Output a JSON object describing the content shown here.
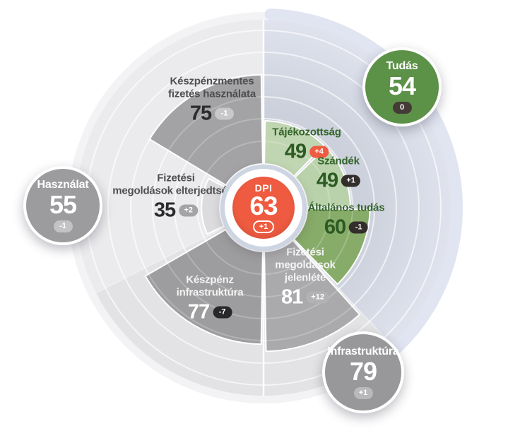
{
  "chart_data": {
    "type": "radial-sector-gauge",
    "max": 100,
    "grid": "concentric-rings",
    "center": {
      "label": "DPI",
      "value": 63,
      "change": "+1",
      "color": "#ee5b40"
    },
    "pillars": [
      {
        "label": "Tudás",
        "value": 54,
        "change": "0",
        "color": "#5c9148",
        "badge_color": "#443a36"
      },
      {
        "label": "Használat",
        "value": 55,
        "change": "-1",
        "color": "#9c9c9e",
        "badge_color": "#c3c3c5"
      },
      {
        "label": "Infrastruktúra",
        "value": 79,
        "change": "+1",
        "color": "#98989a",
        "badge_color": "#b9b9bb"
      }
    ],
    "indicators": [
      {
        "pillar": "Tudás",
        "label": "Tájékozottság",
        "lines": [
          "Tájékozottság"
        ],
        "value": 49,
        "change": "+4",
        "color": "#c0d5b1",
        "badge_color": "#ef5b41"
      },
      {
        "pillar": "Tudás",
        "label": "Szándék",
        "lines": [
          "Szándék"
        ],
        "value": 49,
        "change": "+1",
        "color": "#bad2ab",
        "badge_color": "#332e2c"
      },
      {
        "pillar": "Tudás",
        "label": "Általános tudás",
        "lines": [
          "Általános tudás"
        ],
        "value": 60,
        "change": "-1",
        "color": "#87ab69",
        "badge_color": "#332e2c"
      },
      {
        "pillar": "Infrastruktúra",
        "label": "Fizetési megoldások jelenléte",
        "lines": [
          "Fizetési",
          "megoldások",
          "jelenléte"
        ],
        "value": 81,
        "change": "+12",
        "color": "#aaaaac",
        "badge_color": "#b2b2b4"
      },
      {
        "pillar": "Infrastruktúra",
        "label": "Készpénz infrastruktúra",
        "lines": [
          "Készpénz",
          "infrastruktúra"
        ],
        "value": 77,
        "change": "-7",
        "color": "#9d9d9f",
        "badge_color": "#28282a"
      },
      {
        "pillar": "Használat",
        "label": "Fizetési megoldások elterjedtsége",
        "lines": [
          "Fizetési",
          "megoldások elterjedtsége"
        ],
        "value": 35,
        "change": "+2",
        "color": "#dcdcde",
        "badge_color": "#a4a4a6"
      },
      {
        "pillar": "Használat",
        "label": "Készpénzmentes fizetés használata",
        "lines": [
          "Készpénzmentes",
          "fizetés használata"
        ],
        "value": 75,
        "change": "-1",
        "color": "#a3a3a5",
        "badge_color": "#c8c8ca"
      }
    ],
    "colors": {
      "accent_orange": "#ee5b40",
      "accent_green": "#5c9148",
      "knowledge_sector_bg": "#cbd0db",
      "disc_bg": "#e8e8ea"
    }
  }
}
